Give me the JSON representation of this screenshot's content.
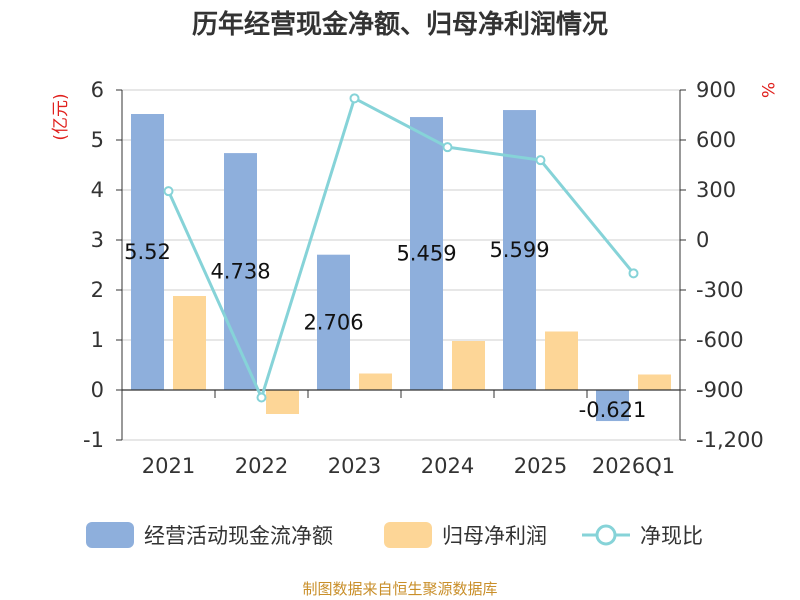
{
  "title": "历年经营现金净额、归母净利润情况",
  "footer": "制图数据来自恒生聚源数据库",
  "colors": {
    "cash_flow": "#8eafdc",
    "net_profit": "#fdd697",
    "ratio_line": "#86d3d8",
    "unit": "#e0201d",
    "footer": "#c98f2a"
  },
  "chart_data": {
    "type": "bar",
    "categories": [
      "2021",
      "2022",
      "2023",
      "2024",
      "2025",
      "2026Q1"
    ],
    "left_axis": {
      "unit": "(亿元)",
      "ylim": [
        -1,
        6
      ],
      "ticks": [
        -1,
        0,
        1,
        2,
        3,
        4,
        5,
        6
      ],
      "tick_labels": [
        "-1",
        "0",
        "1",
        "2",
        "3",
        "4",
        "5",
        "6"
      ]
    },
    "right_axis": {
      "unit": "%",
      "ylim": [
        -1200,
        900
      ],
      "ticks": [
        -1200,
        -900,
        -600,
        -300,
        0,
        300,
        600,
        900
      ],
      "tick_labels": [
        "-1,200",
        "-900",
        "-600",
        "-300",
        "0",
        "300",
        "600",
        "900"
      ]
    },
    "series": [
      {
        "name": "经营活动现金流净额",
        "type": "bar",
        "axis": "left",
        "values": [
          5.52,
          4.738,
          2.706,
          5.459,
          5.599,
          -0.621
        ],
        "data_labels": [
          "5.52",
          "4.738",
          "2.706",
          "5.459",
          "5.599",
          "-0.621"
        ]
      },
      {
        "name": "归母净利润",
        "type": "bar",
        "axis": "left",
        "values": [
          1.88,
          -0.48,
          0.33,
          0.98,
          1.17,
          0.31
        ]
      },
      {
        "name": "净现比",
        "type": "line",
        "axis": "right",
        "values": [
          293,
          -945,
          850,
          557,
          479,
          -200
        ]
      }
    ],
    "grid": true,
    "legend_position": "bottom"
  }
}
